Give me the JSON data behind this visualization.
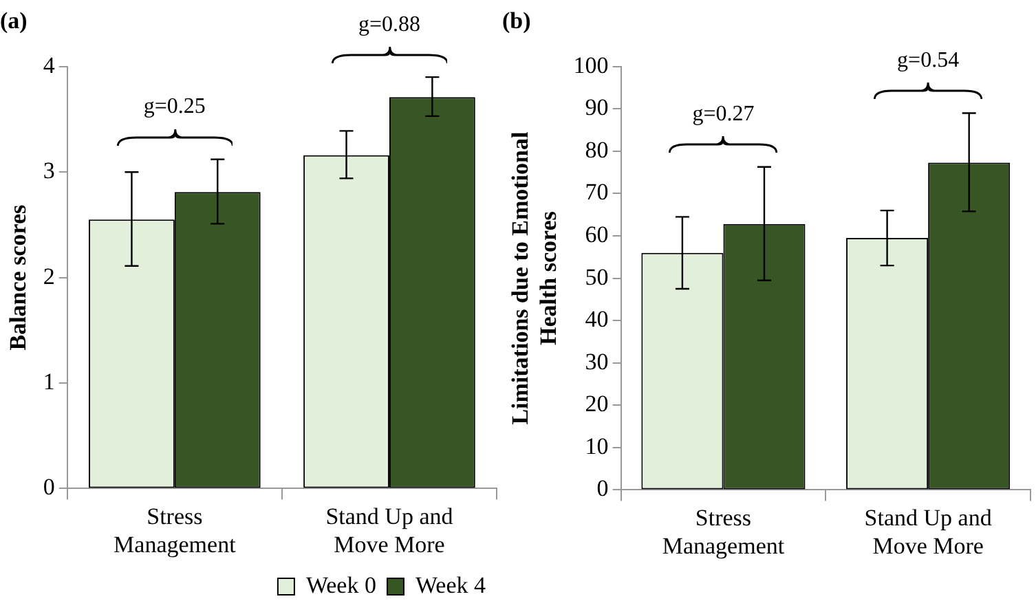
{
  "chart_data": [
    {
      "type": "bar",
      "title": "(a)",
      "ylabel": "Balance scores",
      "categories": [
        "Stress Management",
        "Stand Up and Move More"
      ],
      "series": [
        {
          "name": "Week 0",
          "color": "#e2efda",
          "values": [
            2.55,
            3.16
          ],
          "errors": [
            [
              2.11,
              3.0
            ],
            [
              2.94,
              3.39
            ]
          ]
        },
        {
          "name": "Week 4",
          "color": "#375623",
          "values": [
            2.81,
            3.71
          ],
          "errors": [
            [
              2.51,
              3.12
            ],
            [
              3.53,
              3.9
            ]
          ]
        }
      ],
      "ylim": [
        0,
        4
      ],
      "yticks": [
        0,
        1,
        2,
        3,
        4
      ],
      "grid": false,
      "legend": "bottom",
      "annotations": [
        "g=0.25",
        "g=0.88"
      ]
    },
    {
      "type": "bar",
      "title": "(b)",
      "ylabel": "Limitations due to Emotional Health scores",
      "categories": [
        "Stress Management",
        "Stand Up and Move More"
      ],
      "series": [
        {
          "color": "#e2efda",
          "values": [
            56,
            59.5
          ],
          "errors": [
            [
              47.5,
              64.5
            ],
            [
              53,
              66
            ]
          ]
        },
        {
          "color": "#375623",
          "values": [
            62.8,
            77.3
          ],
          "errors": [
            [
              49.5,
              76.3
            ],
            [
              65.8,
              89
            ]
          ]
        }
      ],
      "ylim": [
        0,
        100
      ],
      "yticks": [
        0,
        10,
        20,
        30,
        40,
        50,
        60,
        70,
        80,
        90,
        100
      ],
      "grid": false,
      "annotations": [
        "g=0.27",
        "g=0.54"
      ]
    }
  ]
}
